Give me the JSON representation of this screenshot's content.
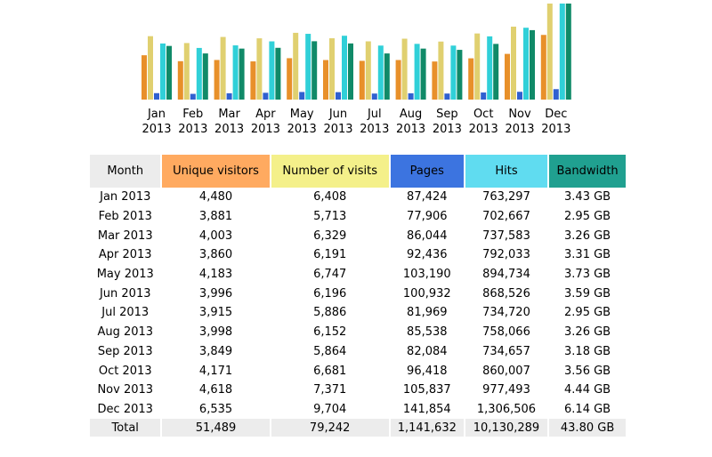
{
  "chart_data": {
    "type": "bar",
    "categories": [
      "Jan 2013",
      "Feb 2013",
      "Mar 2013",
      "Apr 2013",
      "May 2013",
      "Jun 2013",
      "Jul 2013",
      "Aug 2013",
      "Sep 2013",
      "Oct 2013",
      "Nov 2013",
      "Dec 2013"
    ],
    "month_labels": [
      [
        "Jan",
        "2013"
      ],
      [
        "Feb",
        "2013"
      ],
      [
        "Mar",
        "2013"
      ],
      [
        "Apr",
        "2013"
      ],
      [
        "May",
        "2013"
      ],
      [
        "Jun",
        "2013"
      ],
      [
        "Jul",
        "2013"
      ],
      [
        "Aug",
        "2013"
      ],
      [
        "Sep",
        "2013"
      ],
      [
        "Oct",
        "2013"
      ],
      [
        "Nov",
        "2013"
      ],
      [
        "Dec",
        "2013"
      ]
    ],
    "series": [
      {
        "name": "Unique visitors",
        "color": "#e8902a",
        "values": [
          4480,
          3881,
          4003,
          3860,
          4183,
          3996,
          3915,
          3998,
          3849,
          4171,
          4618,
          6535
        ]
      },
      {
        "name": "Number of visits",
        "color": "#e0d070",
        "values": [
          6408,
          5713,
          6329,
          6191,
          6747,
          6196,
          5886,
          6152,
          5864,
          6681,
          7371,
          9704
        ]
      },
      {
        "name": "Pages",
        "color": "#3060d0",
        "values": [
          87424,
          77906,
          86044,
          92436,
          103190,
          100932,
          81969,
          85538,
          82084,
          96418,
          105837,
          141854
        ]
      },
      {
        "name": "Hits",
        "color": "#30d0d8",
        "values": [
          763297,
          702667,
          737583,
          792033,
          894734,
          868526,
          734720,
          758066,
          734657,
          860007,
          977493,
          1306506
        ]
      },
      {
        "name": "Bandwidth",
        "color": "#108a68",
        "values": [
          3.43,
          2.95,
          3.26,
          3.31,
          3.73,
          3.59,
          2.95,
          3.26,
          3.18,
          3.56,
          4.44,
          6.14
        ]
      }
    ]
  },
  "table": {
    "headers": [
      {
        "label": "Month",
        "bg": "#ececec",
        "color": "#000"
      },
      {
        "label": "Unique visitors",
        "bg": "#ffaa60",
        "color": "#000"
      },
      {
        "label": "Number of visits",
        "bg": "#f4f08a",
        "color": "#000"
      },
      {
        "label": "Pages",
        "bg": "#3c74e0",
        "color": "#000"
      },
      {
        "label": "Hits",
        "bg": "#60dcf0",
        "color": "#000"
      },
      {
        "label": "Bandwidth",
        "bg": "#20a090",
        "color": "#000"
      }
    ],
    "rows": [
      [
        "Jan 2013",
        "4,480",
        "6,408",
        "87,424",
        "763,297",
        "3.43 GB"
      ],
      [
        "Feb 2013",
        "3,881",
        "5,713",
        "77,906",
        "702,667",
        "2.95 GB"
      ],
      [
        "Mar 2013",
        "4,003",
        "6,329",
        "86,044",
        "737,583",
        "3.26 GB"
      ],
      [
        "Apr 2013",
        "3,860",
        "6,191",
        "92,436",
        "792,033",
        "3.31 GB"
      ],
      [
        "May 2013",
        "4,183",
        "6,747",
        "103,190",
        "894,734",
        "3.73 GB"
      ],
      [
        "Jun 2013",
        "3,996",
        "6,196",
        "100,932",
        "868,526",
        "3.59 GB"
      ],
      [
        "Jul 2013",
        "3,915",
        "5,886",
        "81,969",
        "734,720",
        "2.95 GB"
      ],
      [
        "Aug 2013",
        "3,998",
        "6,152",
        "85,538",
        "758,066",
        "3.26 GB"
      ],
      [
        "Sep 2013",
        "3,849",
        "5,864",
        "82,084",
        "734,657",
        "3.18 GB"
      ],
      [
        "Oct 2013",
        "4,171",
        "6,681",
        "96,418",
        "860,007",
        "3.56 GB"
      ],
      [
        "Nov 2013",
        "4,618",
        "7,371",
        "105,837",
        "977,493",
        "4.44 GB"
      ],
      [
        "Dec 2013",
        "6,535",
        "9,704",
        "141,854",
        "1,306,506",
        "6.14 GB"
      ]
    ],
    "total": [
      "Total",
      "51,489",
      "79,242",
      "1,141,632",
      "10,130,289",
      "43.80 GB"
    ]
  }
}
